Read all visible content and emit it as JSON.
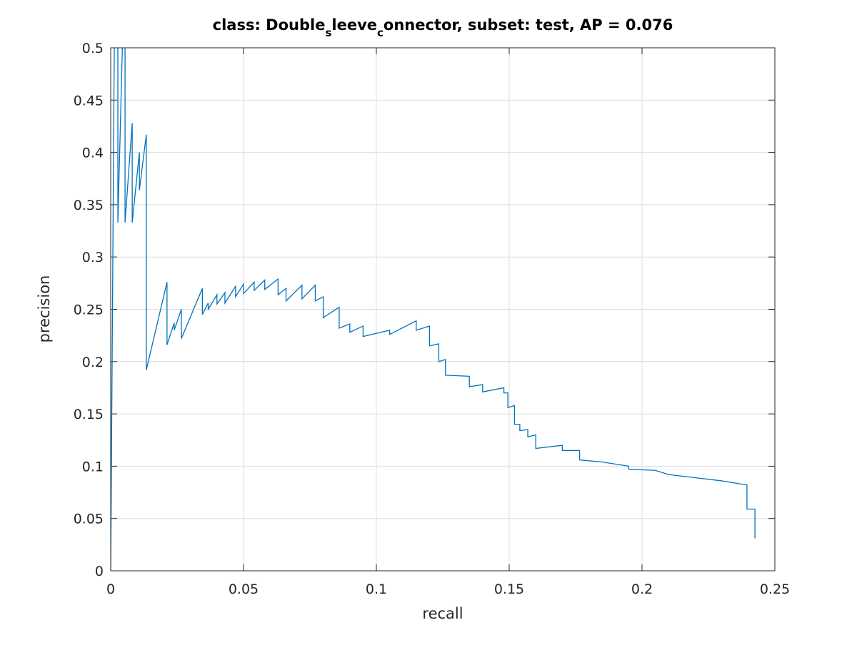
{
  "chart_data": {
    "type": "line",
    "title": [
      "class: Double",
      "s",
      "leeve",
      "c",
      "onnector, subset: test, AP = 0.076"
    ],
    "xlabel": "recall",
    "ylabel": "precision",
    "xlim": [
      0,
      0.25
    ],
    "ylim": [
      0,
      0.5
    ],
    "xticks": [
      0,
      0.05,
      0.1,
      0.15,
      0.2,
      0.25
    ],
    "yticks": [
      0,
      0.05,
      0.1,
      0.15,
      0.2,
      0.25,
      0.3,
      0.35,
      0.4,
      0.45,
      0.5
    ],
    "grid": true,
    "series": [
      {
        "color": "#0072bd",
        "x": [
          0,
          0.0027,
          0.0027,
          0.0054,
          0.0054,
          0.0081,
          0.0081,
          0.0108,
          0.0108,
          0.0134,
          0.0134,
          0.0212,
          0.0212,
          0.0239,
          0.0239,
          0.0266,
          0.0266,
          0.0345,
          0.0345,
          0.0367,
          0.0367,
          0.04,
          0.04,
          0.043,
          0.043,
          0.047,
          0.047,
          0.05,
          0.05,
          0.054,
          0.054,
          0.058,
          0.058,
          0.063,
          0.063,
          0.066,
          0.066,
          0.072,
          0.072,
          0.077,
          0.077,
          0.08,
          0.08,
          0.086,
          0.086,
          0.09,
          0.09,
          0.095,
          0.095,
          0.105,
          0.105,
          0.115,
          0.115,
          0.12,
          0.12,
          0.1235,
          0.1235,
          0.126,
          0.126,
          0.135,
          0.135,
          0.14,
          0.14,
          0.148,
          0.148,
          0.1495,
          0.1495,
          0.152,
          0.152,
          0.154,
          0.154,
          0.157,
          0.157,
          0.16,
          0.16,
          0.17,
          0.17,
          0.1765,
          0.1765,
          0.185,
          0.195,
          0.195,
          0.205,
          0.21,
          0.22,
          0.23,
          0.2395,
          0.2395,
          0.2425,
          0.2425
        ],
        "values": [
          0,
          1.0,
          0.333,
          0.6,
          0.333,
          0.428,
          0.333,
          0.4,
          0.364,
          0.417,
          0.192,
          0.276,
          0.216,
          0.237,
          0.23,
          0.25,
          0.222,
          0.27,
          0.245,
          0.256,
          0.25,
          0.264,
          0.255,
          0.266,
          0.256,
          0.272,
          0.262,
          0.274,
          0.265,
          0.276,
          0.268,
          0.278,
          0.269,
          0.279,
          0.264,
          0.27,
          0.258,
          0.273,
          0.26,
          0.273,
          0.258,
          0.262,
          0.242,
          0.252,
          0.232,
          0.236,
          0.228,
          0.234,
          0.224,
          0.23,
          0.226,
          0.239,
          0.23,
          0.234,
          0.215,
          0.217,
          0.2,
          0.202,
          0.187,
          0.186,
          0.176,
          0.178,
          0.171,
          0.175,
          0.17,
          0.17,
          0.156,
          0.158,
          0.14,
          0.14,
          0.134,
          0.135,
          0.128,
          0.13,
          0.117,
          0.12,
          0.115,
          0.115,
          0.106,
          0.104,
          0.1,
          0.097,
          0.096,
          0.092,
          0.089,
          0.086,
          0.082,
          0.059,
          0.059,
          0.031
        ]
      }
    ]
  }
}
